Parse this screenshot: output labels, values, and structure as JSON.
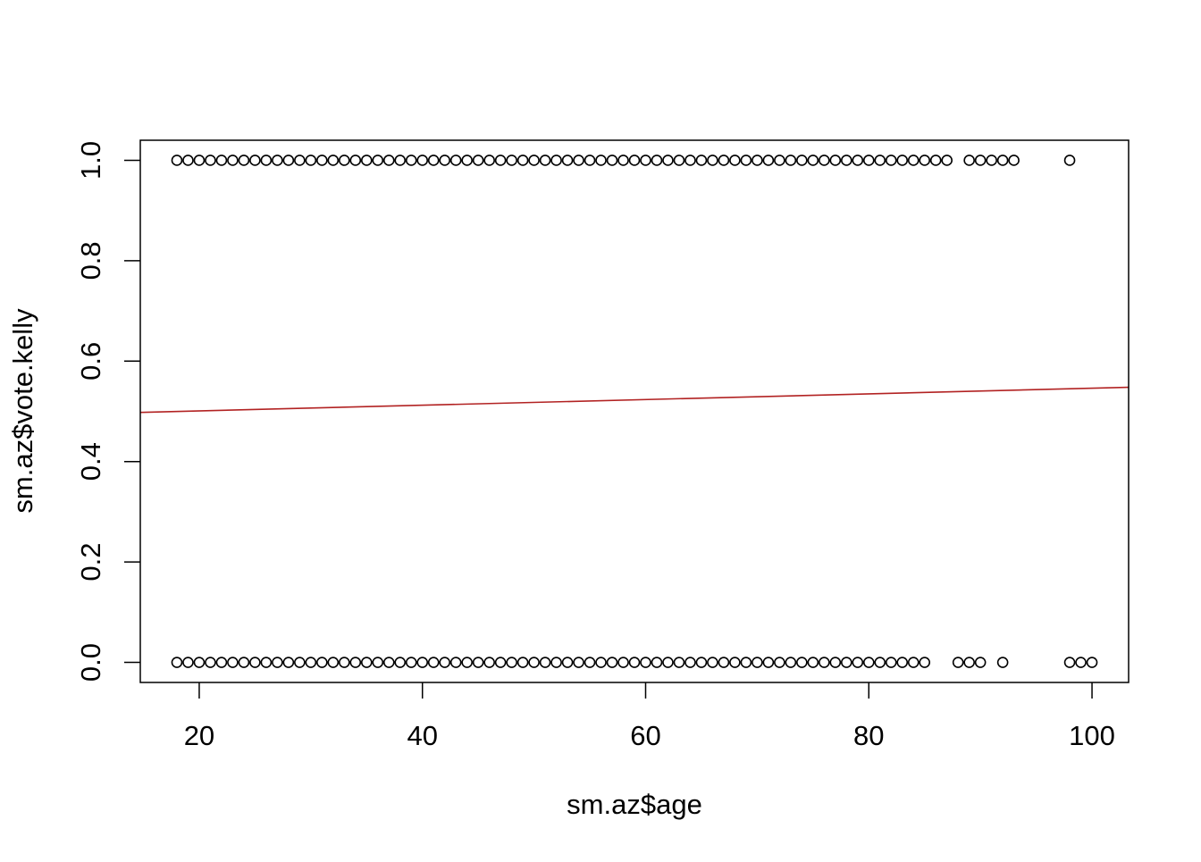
{
  "chart_data": {
    "type": "scatter",
    "title": "",
    "xlabel": "sm.az$age",
    "ylabel": "sm.az$vote.kelly",
    "xlim": [
      14.72,
      103.28
    ],
    "ylim": [
      -0.04,
      1.04
    ],
    "xticks": [
      20,
      40,
      60,
      80,
      100
    ],
    "xtick_labels": [
      "20",
      "40",
      "60",
      "80",
      "100"
    ],
    "yticks": [
      0,
      0.2,
      0.4,
      0.6,
      0.8,
      1.0
    ],
    "ytick_labels": [
      "0.0",
      "0.2",
      "0.4",
      "0.6",
      "0.8",
      "1.0"
    ],
    "grid": false,
    "marker": "open-circle",
    "points_y1_x": [
      18,
      19,
      20,
      21,
      22,
      23,
      24,
      25,
      26,
      27,
      28,
      29,
      30,
      31,
      32,
      33,
      34,
      35,
      36,
      37,
      38,
      39,
      40,
      41,
      42,
      43,
      44,
      45,
      46,
      47,
      48,
      49,
      50,
      51,
      52,
      53,
      54,
      55,
      56,
      57,
      58,
      59,
      60,
      61,
      62,
      63,
      64,
      65,
      66,
      67,
      68,
      69,
      70,
      71,
      72,
      73,
      74,
      75,
      76,
      77,
      78,
      79,
      80,
      81,
      82,
      83,
      84,
      85,
      86,
      87,
      89,
      90,
      91,
      92,
      93,
      98
    ],
    "points_y0_x": [
      18,
      19,
      20,
      21,
      22,
      23,
      24,
      25,
      26,
      27,
      28,
      29,
      30,
      31,
      32,
      33,
      34,
      35,
      36,
      37,
      38,
      39,
      40,
      41,
      42,
      43,
      44,
      45,
      46,
      47,
      48,
      49,
      50,
      51,
      52,
      53,
      54,
      55,
      56,
      57,
      58,
      59,
      60,
      61,
      62,
      63,
      64,
      65,
      66,
      67,
      68,
      69,
      70,
      71,
      72,
      73,
      74,
      75,
      76,
      77,
      78,
      79,
      80,
      81,
      82,
      83,
      84,
      85,
      88,
      89,
      90,
      92,
      98,
      99,
      100
    ],
    "fit_line": {
      "type": "abline",
      "intercept": 0.4896,
      "slope": 0.000565,
      "color": "#b22222"
    }
  }
}
